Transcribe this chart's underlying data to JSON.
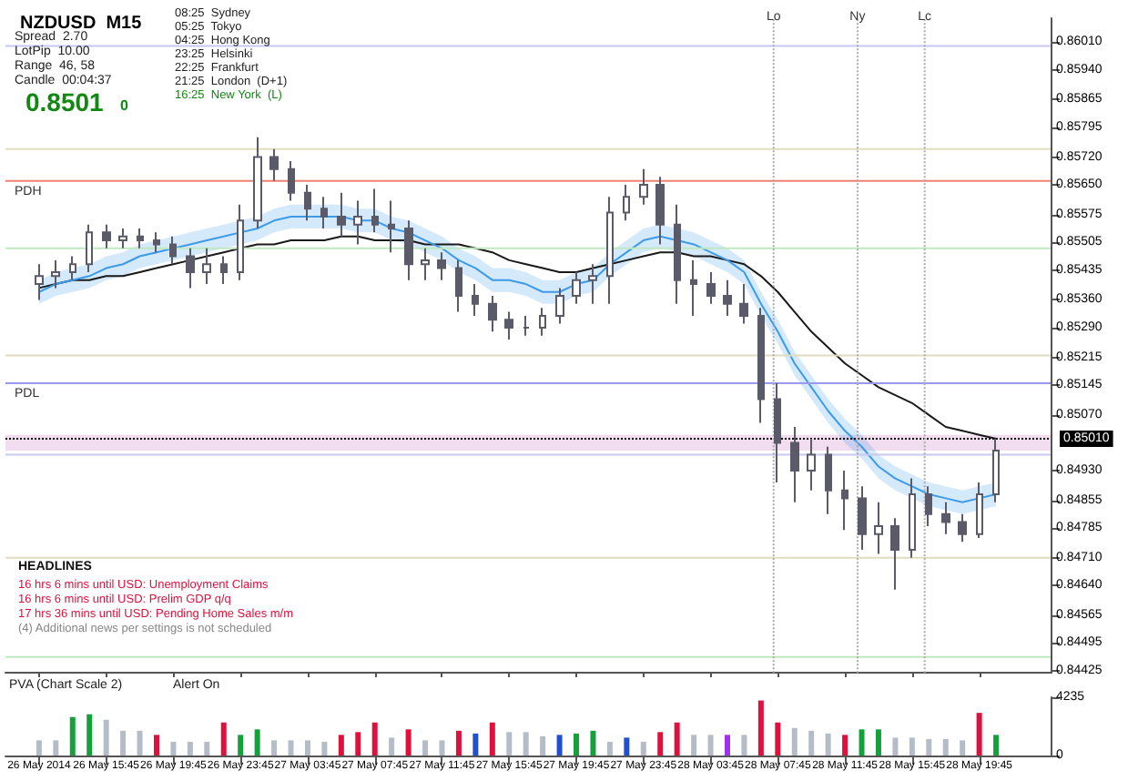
{
  "chart_data": [
    {
      "type": "candlestick",
      "title": "NZDUSD  M15",
      "color": "#5a5a68",
      "x": [
        "2014-05-26T11:45",
        "2014-05-26T12:45",
        "2014-05-26T13:45",
        "2014-05-26T14:45",
        "2014-05-26T15:45",
        "2014-05-26T16:45",
        "2014-05-26T17:45",
        "2014-05-26T18:45",
        "2014-05-26T19:45",
        "2014-05-26T20:45",
        "2014-05-26T21:45",
        "2014-05-26T22:45",
        "2014-05-26T23:45",
        "2014-05-27T00:45",
        "2014-05-27T01:45",
        "2014-05-27T02:45",
        "2014-05-27T03:45",
        "2014-05-27T04:45",
        "2014-05-27T05:45",
        "2014-05-27T06:45",
        "2014-05-27T07:45",
        "2014-05-27T08:45",
        "2014-05-27T09:45",
        "2014-05-27T10:45",
        "2014-05-27T11:45",
        "2014-05-27T12:45",
        "2014-05-27T13:45",
        "2014-05-27T14:45",
        "2014-05-27T15:45",
        "2014-05-27T16:45",
        "2014-05-27T17:45",
        "2014-05-27T18:45",
        "2014-05-27T19:45",
        "2014-05-27T20:45",
        "2014-05-27T21:45",
        "2014-05-27T22:45",
        "2014-05-27T23:45",
        "2014-05-28T00:45",
        "2014-05-28T01:45",
        "2014-05-28T02:45",
        "2014-05-28T03:45",
        "2014-05-28T04:45",
        "2014-05-28T05:45",
        "2014-05-28T06:45",
        "2014-05-28T07:45",
        "2014-05-28T08:45",
        "2014-05-28T09:45",
        "2014-05-28T10:45",
        "2014-05-28T11:45",
        "2014-05-28T12:45",
        "2014-05-28T13:45",
        "2014-05-28T14:45",
        "2014-05-28T15:45",
        "2014-05-28T16:45",
        "2014-05-28T17:45",
        "2014-05-28T18:45",
        "2014-05-28T19:45",
        "2014-05-28T20:45"
      ],
      "ohlc": [
        [
          0.854,
          0.8545,
          0.8536,
          0.8542
        ],
        [
          0.8542,
          0.8546,
          0.8539,
          0.8543
        ],
        [
          0.8543,
          0.8547,
          0.8541,
          0.8545
        ],
        [
          0.8545,
          0.8555,
          0.8543,
          0.8553
        ],
        [
          0.8553,
          0.8555,
          0.8549,
          0.8551
        ],
        [
          0.8551,
          0.8554,
          0.8549,
          0.8552
        ],
        [
          0.8552,
          0.8554,
          0.8549,
          0.8551
        ],
        [
          0.8551,
          0.8553,
          0.8548,
          0.855
        ],
        [
          0.855,
          0.8552,
          0.8545,
          0.8547
        ],
        [
          0.8547,
          0.8549,
          0.8539,
          0.8543
        ],
        [
          0.8543,
          0.8549,
          0.854,
          0.8545
        ],
        [
          0.8545,
          0.8547,
          0.854,
          0.8543
        ],
        [
          0.8543,
          0.856,
          0.8541,
          0.8556
        ],
        [
          0.8556,
          0.8577,
          0.8554,
          0.8572
        ],
        [
          0.8572,
          0.8574,
          0.8566,
          0.8569
        ],
        [
          0.8569,
          0.8571,
          0.8561,
          0.8563
        ],
        [
          0.8563,
          0.8565,
          0.8556,
          0.8559
        ],
        [
          0.8559,
          0.8562,
          0.8554,
          0.8557
        ],
        [
          0.8557,
          0.8563,
          0.8552,
          0.8555
        ],
        [
          0.8555,
          0.8561,
          0.855,
          0.8557
        ],
        [
          0.8557,
          0.8564,
          0.8553,
          0.8555
        ],
        [
          0.8555,
          0.8561,
          0.8548,
          0.8554
        ],
        [
          0.8554,
          0.8556,
          0.8541,
          0.8545
        ],
        [
          0.8545,
          0.8549,
          0.8541,
          0.8546
        ],
        [
          0.8546,
          0.8548,
          0.8541,
          0.8544
        ],
        [
          0.8544,
          0.8546,
          0.8533,
          0.8537
        ],
        [
          0.8537,
          0.854,
          0.8532,
          0.8535
        ],
        [
          0.8535,
          0.8537,
          0.8528,
          0.8531
        ],
        [
          0.8531,
          0.8533,
          0.8526,
          0.8529
        ],
        [
          0.8529,
          0.8532,
          0.8527,
          0.8529
        ],
        [
          0.8529,
          0.8534,
          0.8527,
          0.8532
        ],
        [
          0.8532,
          0.8539,
          0.853,
          0.8537
        ],
        [
          0.8537,
          0.8543,
          0.8535,
          0.8541
        ],
        [
          0.8541,
          0.8545,
          0.8535,
          0.8542
        ],
        [
          0.8542,
          0.8562,
          0.8535,
          0.8558
        ],
        [
          0.8558,
          0.8565,
          0.8556,
          0.8562
        ],
        [
          0.8562,
          0.8569,
          0.856,
          0.8565
        ],
        [
          0.8565,
          0.8567,
          0.855,
          0.8555
        ],
        [
          0.8555,
          0.856,
          0.8535,
          0.8541
        ],
        [
          0.8541,
          0.8546,
          0.8532,
          0.854
        ],
        [
          0.854,
          0.8543,
          0.8535,
          0.8537
        ],
        [
          0.8537,
          0.8541,
          0.8532,
          0.8535
        ],
        [
          0.8535,
          0.854,
          0.853,
          0.8532
        ],
        [
          0.8532,
          0.8534,
          0.8505,
          0.8511
        ],
        [
          0.8511,
          0.8515,
          0.849,
          0.85
        ],
        [
          0.85,
          0.8504,
          0.8485,
          0.8493
        ],
        [
          0.8493,
          0.8501,
          0.8488,
          0.8497
        ],
        [
          0.8497,
          0.8499,
          0.8482,
          0.8488
        ],
        [
          0.8488,
          0.8493,
          0.8478,
          0.8486
        ],
        [
          0.8486,
          0.8489,
          0.8473,
          0.8477
        ],
        [
          0.8477,
          0.8485,
          0.8472,
          0.8479
        ],
        [
          0.8479,
          0.8481,
          0.8463,
          0.8473
        ],
        [
          0.8473,
          0.8491,
          0.8471,
          0.8487
        ],
        [
          0.8487,
          0.8489,
          0.8479,
          0.8482
        ],
        [
          0.8482,
          0.8485,
          0.8477,
          0.848
        ],
        [
          0.848,
          0.8482,
          0.8475,
          0.8477
        ],
        [
          0.8477,
          0.849,
          0.8476,
          0.8487
        ],
        [
          0.8487,
          0.8501,
          0.8485,
          0.8498
        ]
      ],
      "series": [
        {
          "type": "line",
          "color": "#1a1a1a",
          "values": [
            0.8539,
            0.854,
            0.8541,
            0.8541,
            0.8542,
            0.8542,
            0.8543,
            0.8544,
            0.8545,
            0.8546,
            0.8547,
            0.8548,
            0.8549,
            0.855,
            0.855,
            0.8551,
            0.8551,
            0.8551,
            0.8552,
            0.8552,
            0.8551,
            0.8551,
            0.8551,
            0.855,
            0.855,
            0.855,
            0.8549,
            0.8548,
            0.8546,
            0.8545,
            0.8544,
            0.8543,
            0.8543,
            0.8544,
            0.8545,
            0.8546,
            0.8547,
            0.8548,
            0.8548,
            0.8547,
            0.8547,
            0.8546,
            0.8545,
            0.8542,
            0.8538,
            0.8533,
            0.8528,
            0.8524,
            0.852,
            0.8517,
            0.8514,
            0.8512,
            0.851,
            0.8507,
            0.8504,
            0.8503,
            0.8502,
            0.8501
          ]
        },
        {
          "type": "line",
          "color": "#3d9be9",
          "values": [
            0.8538,
            0.854,
            0.8541,
            0.8542,
            0.8544,
            0.8545,
            0.8547,
            0.8548,
            0.8549,
            0.855,
            0.8551,
            0.8552,
            0.8553,
            0.8554,
            0.8556,
            0.8557,
            0.8557,
            0.8557,
            0.8557,
            0.8556,
            0.8556,
            0.8554,
            0.8553,
            0.8551,
            0.8549,
            0.8546,
            0.8544,
            0.8541,
            0.8541,
            0.854,
            0.8538,
            0.8538,
            0.854,
            0.8541,
            0.8545,
            0.8548,
            0.8551,
            0.8552,
            0.8551,
            0.855,
            0.8548,
            0.8546,
            0.8543,
            0.8535,
            0.8528,
            0.852,
            0.8514,
            0.8508,
            0.8503,
            0.8499,
            0.8494,
            0.8491,
            0.8489,
            0.8487,
            0.8486,
            0.8485,
            0.8486,
            0.8487
          ],
          "upper": [
            0.8541,
            0.8543,
            0.8544,
            0.8545,
            0.8547,
            0.8548,
            0.855,
            0.8551,
            0.8552,
            0.8553,
            0.8554,
            0.8555,
            0.8556,
            0.8557,
            0.8559,
            0.856,
            0.856,
            0.856,
            0.856,
            0.8559,
            0.8559,
            0.8557,
            0.8556,
            0.8554,
            0.8552,
            0.8549,
            0.8547,
            0.8544,
            0.8544,
            0.8543,
            0.8541,
            0.8541,
            0.8543,
            0.8544,
            0.8548,
            0.8551,
            0.8554,
            0.8555,
            0.8554,
            0.8553,
            0.8551,
            0.8549,
            0.8546,
            0.8538,
            0.8531,
            0.8523,
            0.8517,
            0.8511,
            0.8506,
            0.8502,
            0.8497,
            0.8494,
            0.8492,
            0.849,
            0.8489,
            0.8488,
            0.8489,
            0.849
          ],
          "lower": [
            0.8535,
            0.8537,
            0.8538,
            0.8539,
            0.8541,
            0.8542,
            0.8544,
            0.8545,
            0.8546,
            0.8547,
            0.8548,
            0.8549,
            0.855,
            0.8551,
            0.8553,
            0.8554,
            0.8554,
            0.8554,
            0.8554,
            0.8553,
            0.8553,
            0.8551,
            0.855,
            0.8548,
            0.8546,
            0.8543,
            0.8541,
            0.8538,
            0.8538,
            0.8537,
            0.8535,
            0.8535,
            0.8537,
            0.8538,
            0.8542,
            0.8545,
            0.8548,
            0.8549,
            0.8548,
            0.8547,
            0.8545,
            0.8543,
            0.854,
            0.8532,
            0.8525,
            0.8517,
            0.8511,
            0.8505,
            0.85,
            0.8496,
            0.8491,
            0.8488,
            0.8486,
            0.8484,
            0.8483,
            0.8482,
            0.8483,
            0.8484
          ]
        }
      ],
      "xlim": [
        "2014-05-26T09:45",
        "2014-05-29T00:00"
      ],
      "xticks": [
        {
          "value": "2014-05-26T11:45",
          "label": null
        },
        {
          "value": "2014-05-26T15:45",
          "label": null
        },
        {
          "value": "2014-05-26T19:45",
          "label": null
        },
        {
          "value": "2014-05-26T23:45",
          "label": null
        },
        {
          "value": "2014-05-27T03:45",
          "label": null
        },
        {
          "value": "2014-05-27T07:45",
          "label": null
        },
        {
          "value": "2014-05-27T11:45",
          "label": null
        },
        {
          "value": "2014-05-27T15:45",
          "label": null
        },
        {
          "value": "2014-05-27T19:45",
          "label": null
        },
        {
          "value": "2014-05-27T23:45",
          "label": null
        },
        {
          "value": "2014-05-28T03:45",
          "label": null
        },
        {
          "value": "2014-05-28T07:45",
          "label": null
        },
        {
          "value": "2014-05-28T11:45",
          "label": null
        },
        {
          "value": "2014-05-28T15:45",
          "label": null
        },
        {
          "value": "2014-05-28T19:45",
          "label": null
        }
      ],
      "ylim": [
        0.8442,
        0.8607
      ],
      "yticks": [
        {
          "value": 0.8601,
          "label": "0.86010"
        },
        {
          "value": 0.8594,
          "label": "0.85940"
        },
        {
          "value": 0.85865,
          "label": "0.85865"
        },
        {
          "value": 0.85795,
          "label": "0.85795"
        },
        {
          "value": 0.8572,
          "label": "0.85720"
        },
        {
          "value": 0.8565,
          "label": "0.85650"
        },
        {
          "value": 0.85575,
          "label": "0.85575"
        },
        {
          "value": 0.85505,
          "label": "0.85505"
        },
        {
          "value": 0.85435,
          "label": "0.85435"
        },
        {
          "value": 0.8536,
          "label": "0.85360"
        },
        {
          "value": 0.8529,
          "label": "0.85290"
        },
        {
          "value": 0.85215,
          "label": "0.85215"
        },
        {
          "value": 0.85145,
          "label": "0.85145"
        },
        {
          "value": 0.8507,
          "label": "0.85070"
        },
        {
          "value": 0.8493,
          "label": "0.84930"
        },
        {
          "value": 0.84855,
          "label": "0.84855"
        },
        {
          "value": 0.84785,
          "label": "0.84785"
        },
        {
          "value": 0.8471,
          "label": "0.84710"
        },
        {
          "value": 0.8464,
          "label": "0.84640"
        },
        {
          "value": 0.84565,
          "label": "0.84565"
        },
        {
          "value": 0.84495,
          "label": "0.84495"
        },
        {
          "value": 0.84425,
          "label": "0.84425"
        }
      ],
      "tick_labels": "y",
      "ref_lines": [
        {
          "axis": "y",
          "value": 0.86,
          "color": "#c8c8f0"
        },
        {
          "axis": "y",
          "value": 0.8574,
          "color": "#e0dcc0"
        },
        {
          "axis": "y",
          "value": 0.8566,
          "label": "PDH",
          "color": "#f08070"
        },
        {
          "axis": "y",
          "value": 0.8549,
          "color": "#c0e8c0"
        },
        {
          "axis": "y",
          "value": 0.8522,
          "color": "#e0dcc0"
        },
        {
          "axis": "y",
          "value": 0.8515,
          "label": "PDL",
          "color": "#9999ee"
        },
        {
          "axis": "y",
          "value": 0.8501,
          "label": "0.85010",
          "color": "#000000",
          "line_style": "dotted"
        },
        {
          "axis": "y",
          "value": 0.8497,
          "color": "#c8c8f0"
        },
        {
          "axis": "y",
          "value": 0.8471,
          "color": "#e0dcc0"
        },
        {
          "axis": "y",
          "value": 0.8446,
          "color": "#c0e8c0"
        },
        {
          "axis": "x",
          "value": "2014-05-28T07:30",
          "label": "Lo",
          "color": "#aaaaaa",
          "line_style": "dotted"
        },
        {
          "axis": "x",
          "value": "2014-05-28T12:30",
          "label": "Ny",
          "color": "#aaaaaa",
          "line_style": "dotted"
        },
        {
          "axis": "x",
          "value": "2014-05-28T16:30",
          "label": "Lc",
          "color": "#aaaaaa",
          "line_style": "dotted"
        }
      ],
      "bands": [
        {
          "axis": "y",
          "from": 0.8498,
          "to": 0.8502,
          "color": "#f2dcef"
        }
      ],
      "grid": false,
      "annotations": [
        "Spread  2.70",
        "LotPip  10.00",
        "Range  46, 58",
        "Candle  00:04:37",
        "0.8501",
        "0",
        "08:25  Sydney",
        "05:25  Tokyo",
        "04:25  Hong Kong",
        "23:25  Helsinki",
        "22:25  Frankfurt",
        "21:25  London  (D+1)",
        "16:25  New York  (L)",
        "HEADLINES",
        "16 hrs 6 mins until USD: Unemployment Claims",
        "16 hrs 6 mins until USD: Prelim GDP q/q",
        "17 hrs 36 mins until USD: Pending Home Sales m/m",
        "(4) Additional news per settings is not scheduled"
      ]
    },
    {
      "type": "bar",
      "x": [
        "2014-05-26T11:45",
        "2014-05-26T12:45",
        "2014-05-26T13:45",
        "2014-05-26T14:45",
        "2014-05-26T15:45",
        "2014-05-26T16:45",
        "2014-05-26T17:45",
        "2014-05-26T18:45",
        "2014-05-26T19:45",
        "2014-05-26T20:45",
        "2014-05-26T21:45",
        "2014-05-26T22:45",
        "2014-05-26T23:45",
        "2014-05-27T00:45",
        "2014-05-27T01:45",
        "2014-05-27T02:45",
        "2014-05-27T03:45",
        "2014-05-27T04:45",
        "2014-05-27T05:45",
        "2014-05-27T06:45",
        "2014-05-27T07:45",
        "2014-05-27T08:45",
        "2014-05-27T09:45",
        "2014-05-27T10:45",
        "2014-05-27T11:45",
        "2014-05-27T12:45",
        "2014-05-27T13:45",
        "2014-05-27T14:45",
        "2014-05-27T15:45",
        "2014-05-27T16:45",
        "2014-05-27T17:45",
        "2014-05-27T18:45",
        "2014-05-27T19:45",
        "2014-05-27T20:45",
        "2014-05-27T21:45",
        "2014-05-27T22:45",
        "2014-05-27T23:45",
        "2014-05-28T00:45",
        "2014-05-28T01:45",
        "2014-05-28T02:45",
        "2014-05-28T03:45",
        "2014-05-28T04:45",
        "2014-05-28T05:45",
        "2014-05-28T06:45",
        "2014-05-28T07:45",
        "2014-05-28T08:45",
        "2014-05-28T09:45",
        "2014-05-28T10:45",
        "2014-05-28T11:45",
        "2014-05-28T12:45",
        "2014-05-28T13:45",
        "2014-05-28T14:45",
        "2014-05-28T15:45",
        "2014-05-28T16:45",
        "2014-05-28T17:45",
        "2014-05-28T18:45",
        "2014-05-28T19:45",
        "2014-05-28T20:45"
      ],
      "values": [
        1100,
        1100,
        2800,
        3000,
        2600,
        1800,
        1800,
        1500,
        1000,
        1000,
        1000,
        2400,
        1500,
        1900,
        1100,
        1100,
        1100,
        1000,
        1500,
        1700,
        2400,
        1300,
        1900,
        1100,
        1100,
        1800,
        1600,
        2400,
        1700,
        1700,
        1400,
        1500,
        1600,
        1800,
        1000,
        1300,
        1000,
        1700,
        2400,
        1500,
        1500,
        1500,
        1500,
        4000,
        2400,
        2000,
        1800,
        1600,
        1500,
        1900,
        1900,
        1300,
        1300,
        1200,
        1200,
        1100,
        3100,
        1500
      ],
      "colors": [
        "#b4bcc8",
        "#b4bcc8",
        "#16a03c",
        "#16a03c",
        "#b4bcc8",
        "#b4bcc8",
        "#b4bcc8",
        "#e0103c",
        "#b4bcc8",
        "#b4bcc8",
        "#b4bcc8",
        "#e0103c",
        "#16a03c",
        "#16a03c",
        "#b4bcc8",
        "#b4bcc8",
        "#b4bcc8",
        "#b4bcc8",
        "#e0103c",
        "#e0103c",
        "#e0103c",
        "#b4bcc8",
        "#e0103c",
        "#b4bcc8",
        "#b4bcc8",
        "#e0103c",
        "#2050d0",
        "#e0103c",
        "#b4bcc8",
        "#b4bcc8",
        "#b4bcc8",
        "#2050d0",
        "#16a03c",
        "#16a03c",
        "#b4bcc8",
        "#2050d0",
        "#b4bcc8",
        "#e0103c",
        "#e0103c",
        "#b4bcc8",
        "#b4bcc8",
        "#a030f0",
        "#b4bcc8",
        "#e0103c",
        "#e0103c",
        "#b4bcc8",
        "#b4bcc8",
        "#b4bcc8",
        "#e0103c",
        "#16a03c",
        "#16a03c",
        "#b4bcc8",
        "#b4bcc8",
        "#b4bcc8",
        "#b4bcc8",
        "#b4bcc8",
        "#e0103c",
        "#16a03c"
      ],
      "xlim": [
        "2014-05-26T09:45",
        "2014-05-29T00:00"
      ],
      "xticks": [
        {
          "value": "2014-05-26T11:45",
          "label": "26 May 2014"
        },
        {
          "value": "2014-05-26T15:45",
          "label": "26 May 15:45"
        },
        {
          "value": "2014-05-26T19:45",
          "label": "26 May 19:45"
        },
        {
          "value": "2014-05-26T23:45",
          "label": "26 May 23:45"
        },
        {
          "value": "2014-05-27T03:45",
          "label": "27 May 03:45"
        },
        {
          "value": "2014-05-27T07:45",
          "label": "27 May 07:45"
        },
        {
          "value": "2014-05-27T11:45",
          "label": "27 May 11:45"
        },
        {
          "value": "2014-05-27T15:45",
          "label": "27 May 15:45"
        },
        {
          "value": "2014-05-27T19:45",
          "label": "27 May 19:45"
        },
        {
          "value": "2014-05-27T23:45",
          "label": "27 May 23:45"
        },
        {
          "value": "2014-05-28T03:45",
          "label": "28 May 03:45"
        },
        {
          "value": "2014-05-28T07:45",
          "label": "28 May 07:45"
        },
        {
          "value": "2014-05-28T11:45",
          "label": "28 May 11:45"
        },
        {
          "value": "2014-05-28T15:45",
          "label": "28 May 15:45"
        },
        {
          "value": "2014-05-28T19:45",
          "label": "28 May 19:45"
        }
      ],
      "ylim": [
        0,
        4235
      ],
      "yticks": [
        0,
        4235
      ],
      "grid": false,
      "annotations": [
        "PVA (Chart Scale 2)",
        "Alert On"
      ]
    }
  ]
}
